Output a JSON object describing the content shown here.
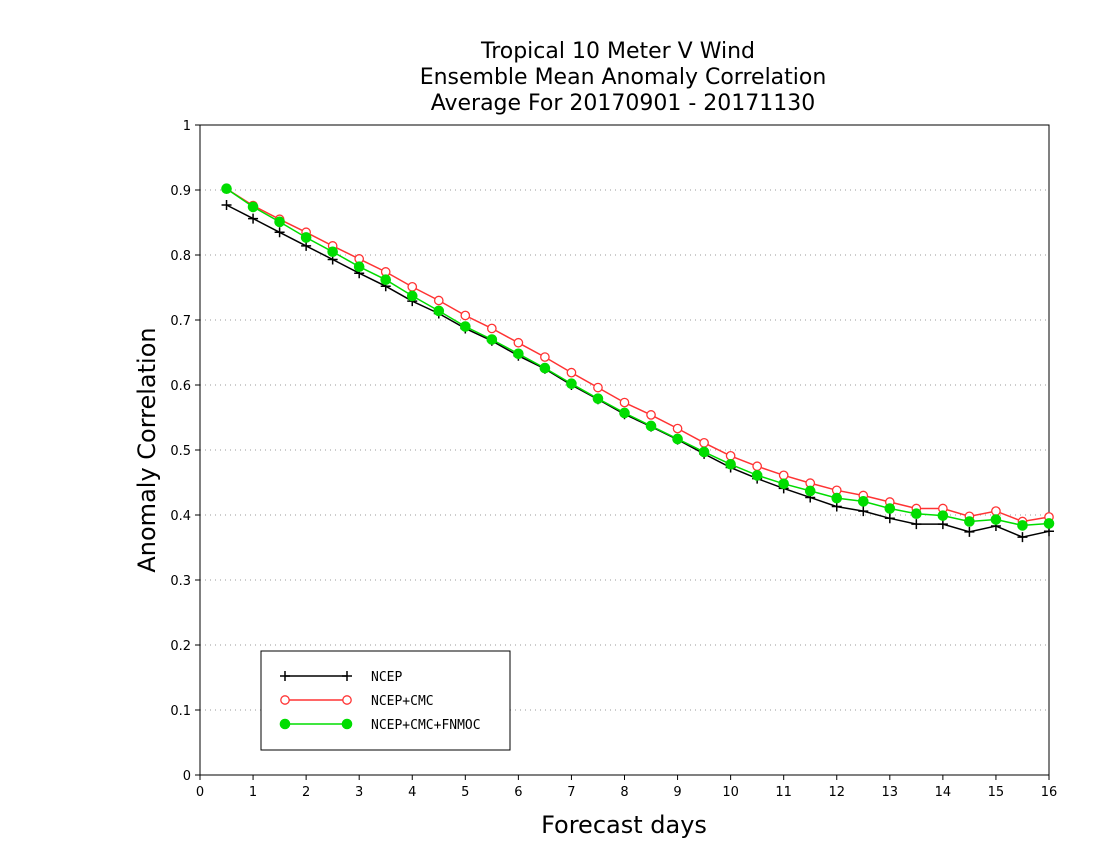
{
  "chart_data": {
    "type": "line",
    "title": [
      "Tropical 10 Meter V Wind",
      "Ensemble Mean Anomaly Correlation",
      "Average For 20170901 - 20171130"
    ],
    "xlabel": "Forecast days",
    "ylabel": "Anomaly Correlation",
    "xlim": [
      0,
      16
    ],
    "ylim": [
      0,
      1
    ],
    "xticks": [
      0,
      1,
      2,
      3,
      4,
      5,
      6,
      7,
      8,
      9,
      10,
      11,
      12,
      13,
      14,
      15,
      16
    ],
    "yticks": [
      0,
      0.1,
      0.2,
      0.3,
      0.4,
      0.5,
      0.6,
      0.7,
      0.8,
      0.9,
      1
    ],
    "ytick_labels": [
      "0",
      "0.1",
      "0.2",
      "0.3",
      "0.4",
      "0.5",
      "0.6",
      "0.7",
      "0.8",
      "0.9",
      "1"
    ],
    "grid": "horizontal-dotted",
    "legend_position": "bottom-left",
    "x": [
      0.5,
      1,
      1.5,
      2,
      2.5,
      3,
      3.5,
      4,
      4.5,
      5,
      5.5,
      6,
      6.5,
      7,
      7.5,
      8,
      8.5,
      9,
      9.5,
      10,
      10.5,
      11,
      11.5,
      12,
      12.5,
      13,
      13.5,
      14,
      14.5,
      15,
      15.5,
      16
    ],
    "series": [
      {
        "name": "NCEP",
        "color": "#000000",
        "marker": "plus",
        "values": [
          0.877,
          0.856,
          0.835,
          0.814,
          0.793,
          0.772,
          0.752,
          0.729,
          0.71,
          0.687,
          0.668,
          0.645,
          0.625,
          0.6,
          0.578,
          0.555,
          0.536,
          0.516,
          0.494,
          0.473,
          0.456,
          0.441,
          0.427,
          0.413,
          0.406,
          0.395,
          0.386,
          0.386,
          0.374,
          0.383,
          0.366,
          0.375
        ]
      },
      {
        "name": "NCEP+CMC",
        "color": "#ff3333",
        "marker": "open-circle",
        "values": [
          0.902,
          0.876,
          0.855,
          0.835,
          0.814,
          0.794,
          0.774,
          0.751,
          0.73,
          0.707,
          0.687,
          0.665,
          0.643,
          0.619,
          0.596,
          0.573,
          0.554,
          0.533,
          0.511,
          0.491,
          0.475,
          0.461,
          0.449,
          0.438,
          0.43,
          0.42,
          0.41,
          0.41,
          0.398,
          0.406,
          0.39,
          0.397
        ]
      },
      {
        "name": "NCEP+CMC+FNMOC",
        "color": "#00dd00",
        "marker": "filled-circle",
        "values": [
          0.902,
          0.874,
          0.851,
          0.827,
          0.805,
          0.782,
          0.762,
          0.737,
          0.714,
          0.69,
          0.67,
          0.648,
          0.626,
          0.602,
          0.579,
          0.557,
          0.537,
          0.517,
          0.497,
          0.478,
          0.461,
          0.448,
          0.437,
          0.426,
          0.421,
          0.41,
          0.402,
          0.399,
          0.39,
          0.393,
          0.384,
          0.387
        ]
      }
    ]
  }
}
